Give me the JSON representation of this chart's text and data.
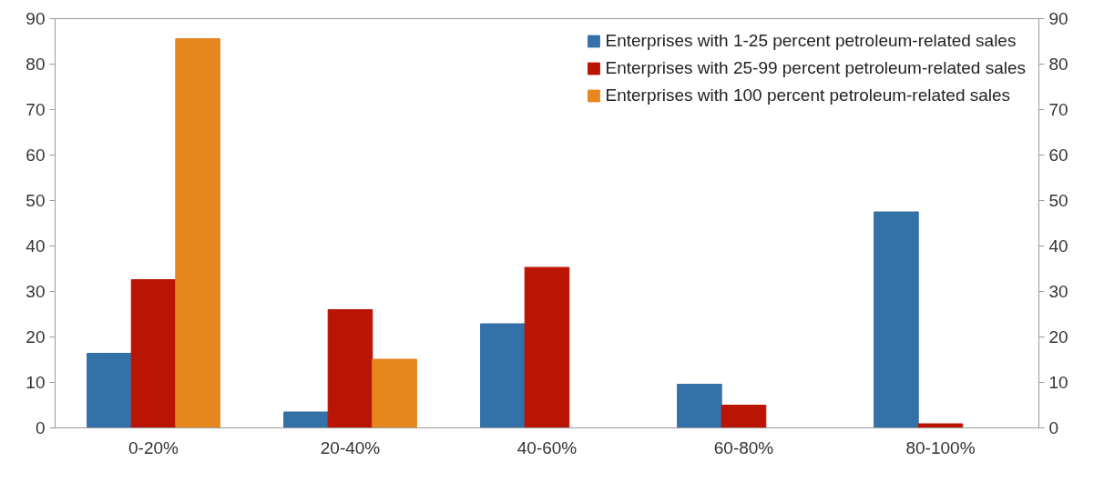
{
  "chart_data": {
    "type": "bar",
    "categories": [
      "0-20%",
      "20-40%",
      "40-60%",
      "60-80%",
      "80-100%"
    ],
    "series": [
      {
        "name": "Enterprises with 1-25 percent petroleum-related sales",
        "color": "#3471a8",
        "values": [
          16.4,
          3.5,
          22.9,
          9.6,
          47.5
        ]
      },
      {
        "name": "Enterprises with 25-99 percent petroleum-related sales",
        "color": "#b91404",
        "values": [
          32.6,
          26.0,
          35.3,
          5.0,
          0.9
        ]
      },
      {
        "name": "Enterprises with 100 percent petroleum-related sales",
        "color": "#e8861e",
        "values": [
          85.6,
          15.1,
          0,
          0,
          0
        ]
      }
    ],
    "ylim": [
      0,
      90
    ],
    "yticks": [
      0,
      10,
      20,
      30,
      40,
      50,
      60,
      70,
      80,
      90
    ],
    "y2lim": [
      0,
      90
    ],
    "y2ticks": [
      0,
      10,
      20,
      30,
      40,
      50,
      60,
      70,
      80,
      90
    ],
    "grid": false,
    "legend": "top right"
  }
}
